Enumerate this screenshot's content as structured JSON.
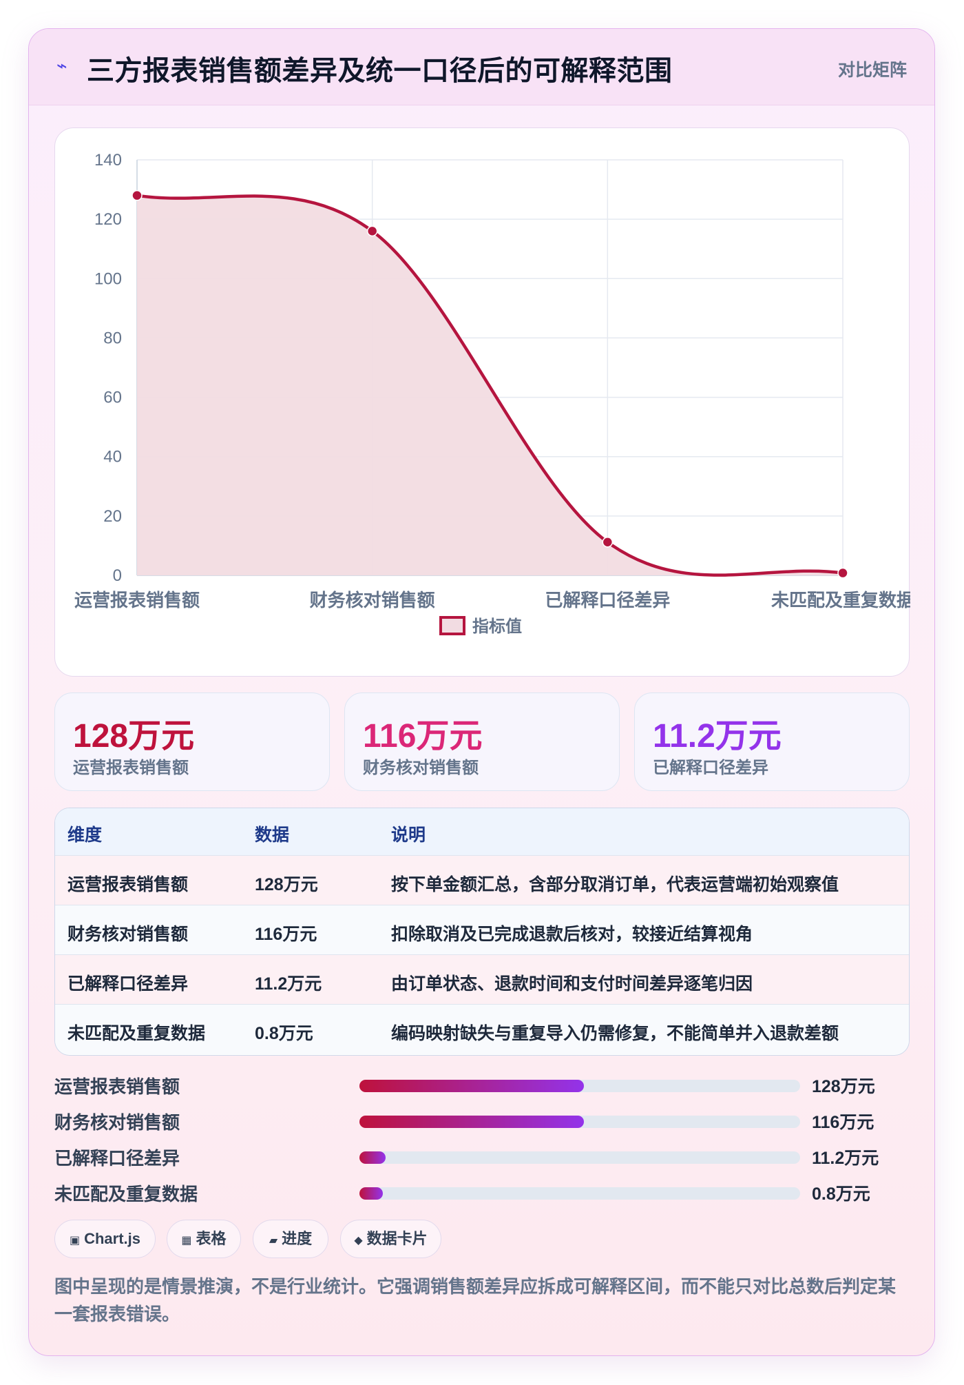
{
  "header": {
    "title": "三方报表销售额差异及统一口径后的可解释范围",
    "tag": "对比矩阵",
    "icon": "bolt-icon"
  },
  "chart_data": {
    "type": "line",
    "categories": [
      "运营报表销售额",
      "财务核对销售额",
      "已解释口径差异",
      "未匹配及重复数据"
    ],
    "series": [
      {
        "name": "指标值",
        "values": [
          128,
          116,
          11.2,
          0.8
        ]
      }
    ],
    "ylim": [
      0,
      140
    ],
    "yticks": [
      0,
      20,
      40,
      60,
      80,
      100,
      120,
      140
    ],
    "area_fill": true,
    "grid": true,
    "legend": "bottom",
    "colors": {
      "line": "#b5153f",
      "fill": "#f2dce2"
    }
  },
  "kpis": [
    {
      "value": "128万元",
      "label": "运营报表销售额",
      "color": "#be123c"
    },
    {
      "value": "116万元",
      "label": "财务核对销售额",
      "color": "#db2777"
    },
    {
      "value": "11.2万元",
      "label": "已解释口径差异",
      "color": "#9333ea"
    }
  ],
  "table": {
    "headers": [
      "维度",
      "数据",
      "说明"
    ],
    "rows": [
      [
        "运营报表销售额",
        "128万元",
        "按下单金额汇总，含部分取消订单，代表运营端初始观察值"
      ],
      [
        "财务核对销售额",
        "116万元",
        "扣除取消及已完成退款后核对，较接近结算视角"
      ],
      [
        "已解释口径差异",
        "11.2万元",
        "由订单状态、退款时间和支付时间差异逐笔归因"
      ],
      [
        "未匹配及重复数据",
        "0.8万元",
        "编码映射缺失与重复导入仍需修复，不能简单并入退款差额"
      ]
    ]
  },
  "progress": [
    {
      "label": "运营报表销售额",
      "value": "128万元",
      "fraction": 0.51
    },
    {
      "label": "财务核对销售额",
      "value": "116万元",
      "fraction": 0.51
    },
    {
      "label": "已解释口径差异",
      "value": "11.2万元",
      "fraction": 0.06
    },
    {
      "label": "未匹配及重复数据",
      "value": "0.8万元",
      "fraction": 0.04
    }
  ],
  "chips": [
    {
      "icon": "▣",
      "label": "Chart.js"
    },
    {
      "icon": "▦",
      "label": "表格"
    },
    {
      "icon": "▰",
      "label": "进度"
    },
    {
      "icon": "◆",
      "label": "数据卡片"
    }
  ],
  "note": "图中呈现的是情景推演，不是行业统计。它强调销售额差异应拆成可解释区间，而不能只对比总数后判定某一套报表错误。"
}
